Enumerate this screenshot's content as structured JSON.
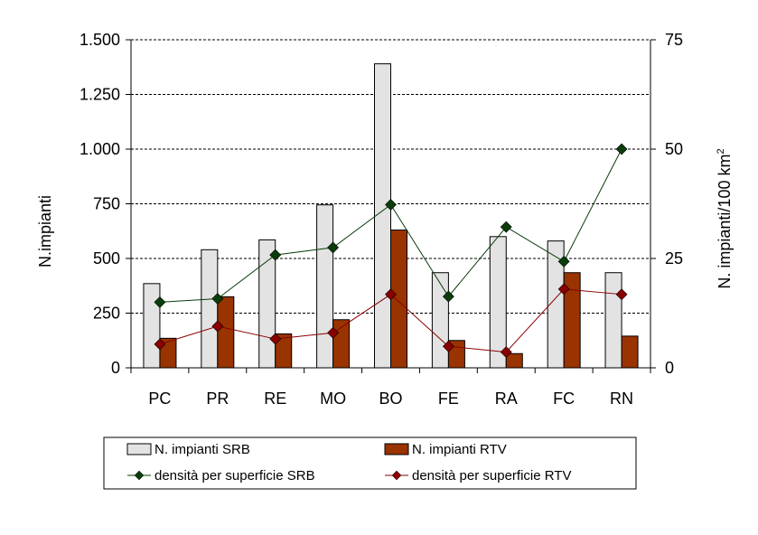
{
  "chart_data": {
    "type": "bar",
    "categories": [
      "PC",
      "PR",
      "RE",
      "MO",
      "BO",
      "FE",
      "RA",
      "FC",
      "RN"
    ],
    "y_left": {
      "label": "N.impianti",
      "ylim": [
        0,
        1500
      ],
      "ticks": [
        0,
        250,
        500,
        750,
        1000,
        1250,
        1500
      ],
      "tick_labels": [
        "0",
        "250",
        "500",
        "750",
        "1.000",
        "1.250",
        "1.500"
      ]
    },
    "y_right": {
      "label": "N. impianti/100 km",
      "label_superscript": "2",
      "ylim": [
        0,
        75
      ],
      "ticks": [
        0,
        25,
        50,
        75
      ],
      "tick_labels": [
        "0",
        "25",
        "50",
        "75"
      ]
    },
    "grid": true,
    "legend_position": "bottom",
    "series": [
      {
        "name": "N. impianti SRB",
        "kind": "bar",
        "axis": "left",
        "color": "#e3e3e3",
        "values": [
          385,
          540,
          585,
          745,
          1390,
          435,
          600,
          580,
          435
        ]
      },
      {
        "name": "N. impianti RTV",
        "kind": "bar",
        "axis": "left",
        "color": "#993300",
        "values": [
          135,
          325,
          155,
          220,
          630,
          125,
          65,
          435,
          145
        ]
      },
      {
        "name": "densità per superficie SRB",
        "kind": "line",
        "axis": "right",
        "color": "#0a3d0a",
        "values": [
          15,
          15.8,
          25.8,
          27.5,
          37.3,
          16.3,
          32.2,
          24.3,
          50
        ]
      },
      {
        "name": "densità per superficie RTV",
        "kind": "line",
        "axis": "right",
        "color": "#8b0000",
        "values": [
          5.4,
          9.5,
          6.6,
          8,
          16.8,
          4.9,
          3.6,
          18,
          16.8
        ]
      }
    ]
  }
}
